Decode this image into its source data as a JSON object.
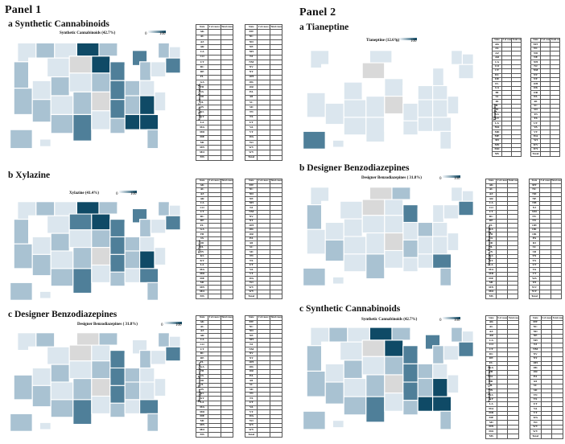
{
  "panel1": {
    "label": "Panel 1",
    "sections": [
      {
        "id": "a",
        "heading": "a  Synthetic Cannabinoids",
        "map_title": "Synthetic Cannabinoids (42.7%)",
        "vertical_label": "Synthetic Cannabinoids"
      },
      {
        "id": "b",
        "heading": "b  Xylazine",
        "map_title": "Xylazine (41.4%)",
        "vertical_label": "Xylazine"
      },
      {
        "id": "c",
        "heading": "c  Designer Benzodiazepines",
        "map_title": "Designer Benzodiazepines ( 31.8%)",
        "vertical_label": "Designer Benzodiazepines"
      }
    ]
  },
  "panel2": {
    "label": "Panel 2",
    "sections": [
      {
        "id": "a",
        "heading": "a  Tianeptine",
        "map_title": "Tianeptine (12.6%)",
        "vertical_label": "Tianeptine"
      },
      {
        "id": "b",
        "heading": "b  Designer Benzodiazepines",
        "map_title": "Designer Benzodiazepines ( 31.8%)",
        "vertical_label": "Designer Benzodiazepines"
      },
      {
        "id": "c",
        "heading": "c  Synthetic Cannabinoids",
        "map_title": "Synthetic Cannabinoids (42.7%)",
        "vertical_label": "Synthetic Cannabinoids"
      }
    ]
  },
  "legend": {
    "min": "0",
    "max": "100"
  },
  "table": {
    "headers": [
      "State",
      "# of cases (%)",
      "Total cases",
      "State",
      "# of cases (%)",
      "Total cases"
    ],
    "left_states": [
      "AK",
      "AL",
      "AZ",
      "AR",
      "CA",
      "CO",
      "CT",
      "DC",
      "DE",
      "FL",
      "GA",
      "HI",
      "IA",
      "ID",
      "IL",
      "IN",
      "KS",
      "KY",
      "LA",
      "MA",
      "MD",
      "ME",
      "MI",
      "MN",
      "MO",
      "MS"
    ],
    "right_states": [
      "MT",
      "NC",
      "ND",
      "NE",
      "NH",
      "NJ",
      "NM",
      "NV",
      "NY",
      "OH",
      "OK",
      "OR",
      "PA",
      "RI",
      "SC",
      "SD",
      "TN",
      "TX",
      "UT",
      "VA",
      "VT",
      "WA",
      "WI",
      "WV",
      "WY",
      "Total"
    ],
    "na": "N/A"
  },
  "colors": {
    "dark": "#0f4a66",
    "mid": "#4f7f99",
    "light": "#a9c2d2",
    "pale": "#dbe6ee",
    "na": "#d9d9d9",
    "white": "#ffffff"
  }
}
